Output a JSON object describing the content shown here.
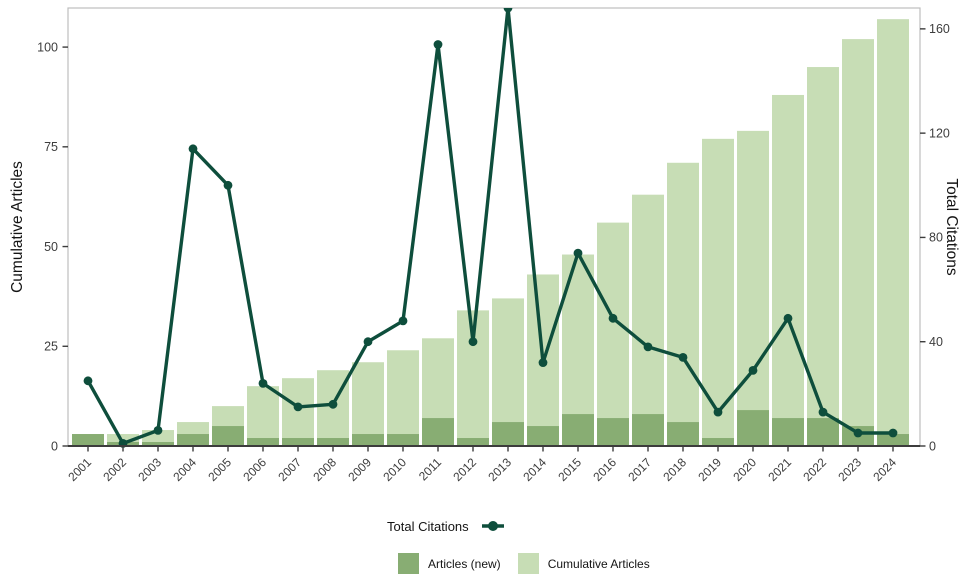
{
  "axes": {
    "left_title": "Cumulative Articles",
    "right_title": "Total Citations"
  },
  "legend": {
    "total_citations": "Total Citations",
    "articles_new": "Articles (new)",
    "cumulative_articles": "Cumulative Articles"
  },
  "colors": {
    "line": "#0e4e3c",
    "bar_new": "#88ad73",
    "bar_cumulative": "#c7ddb5",
    "panel_border": "#bdbdbd",
    "axis_line": "#3c3c3c",
    "tick_text": "#3d3d3d",
    "background": "#ffffff"
  },
  "chart_data": {
    "type": "bar",
    "subtype": "combo-bar-line-dual-axis",
    "title": "",
    "categories": [
      "2001",
      "2002",
      "2003",
      "2004",
      "2005",
      "2006",
      "2007",
      "2008",
      "2009",
      "2010",
      "2011",
      "2012",
      "2013",
      "2014",
      "2015",
      "2016",
      "2017",
      "2018",
      "2019",
      "2020",
      "2021",
      "2022",
      "2023",
      "2024"
    ],
    "series": [
      {
        "name": "Articles (new)",
        "type": "bar",
        "axis": "left",
        "color": "#88ad73",
        "values": [
          3,
          1,
          1,
          3,
          5,
          2,
          2,
          2,
          3,
          3,
          7,
          2,
          6,
          5,
          8,
          7,
          8,
          6,
          2,
          9,
          7,
          7,
          5,
          3
        ]
      },
      {
        "name": "Cumulative Articles",
        "type": "bar",
        "axis": "left",
        "color": "#c7ddb5",
        "values": [
          3,
          3,
          4,
          6,
          10,
          15,
          17,
          19,
          21,
          24,
          27,
          34,
          37,
          43,
          48,
          56,
          63,
          71,
          77,
          79,
          88,
          95,
          102,
          107
        ]
      },
      {
        "name": "Total Citations",
        "type": "line",
        "axis": "right",
        "color": "#0e4e3c",
        "values": [
          25,
          1,
          6,
          114,
          100,
          24,
          15,
          16,
          40,
          48,
          154,
          40,
          168,
          32,
          74,
          49,
          38,
          34,
          13,
          29,
          49,
          13,
          5,
          5
        ]
      }
    ],
    "left_axis": {
      "label": "Cumulative Articles",
      "ticks": [
        0,
        25,
        50,
        75,
        100
      ],
      "range": [
        0,
        109.8
      ]
    },
    "right_axis": {
      "label": "Total Citations",
      "ticks": [
        0,
        40,
        80,
        120,
        160
      ],
      "range": [
        0,
        168
      ]
    },
    "x_axis": {
      "label": "",
      "tick_rotation_deg": 45
    },
    "grid": false,
    "legend_position": "bottom",
    "notes": "2013 line peak touches/clips at top of panel"
  }
}
